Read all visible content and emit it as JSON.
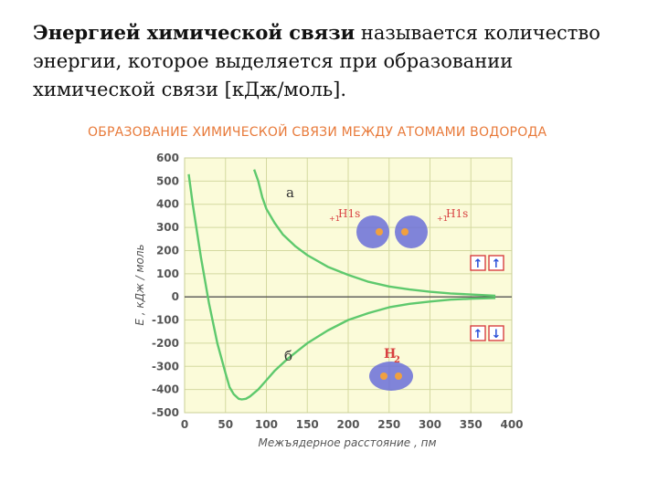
{
  "text": {
    "bold_term": "Энергией химической связи",
    "rest_line1": " называется количество",
    "line2": "энергии, которое выделяется при образовании",
    "line3": "химической связи [кДж/моль]."
  },
  "chart_data": {
    "type": "line",
    "title": "ОБРАЗОВАНИЕ ХИМИЧЕСКОЙ СВЯЗИ МЕЖДУ АТОМАМИ ВОДОРОДА",
    "xlabel": "Межъядерное расстояние ,  пм",
    "ylabel": "E , кДж / моль",
    "xlim": [
      0,
      400
    ],
    "ylim": [
      -500,
      600
    ],
    "x_ticks": [
      0,
      50,
      100,
      150,
      200,
      250,
      300,
      350,
      400
    ],
    "y_ticks": [
      600,
      500,
      400,
      300,
      200,
      100,
      0,
      -100,
      -200,
      -300,
      -400,
      -500
    ],
    "grid": true,
    "series": [
      {
        "name": "а",
        "x": [
          85,
          90,
          95,
          100,
          110,
          120,
          135,
          150,
          175,
          200,
          225,
          250,
          275,
          300,
          325,
          350,
          380
        ],
        "y": [
          550,
          500,
          430,
          380,
          320,
          270,
          220,
          180,
          130,
          95,
          65,
          45,
          32,
          22,
          15,
          10,
          5
        ]
      },
      {
        "name": "б",
        "x": [
          5,
          10,
          20,
          30,
          40,
          50,
          55,
          60,
          66,
          70,
          75,
          80,
          90,
          100,
          110,
          125,
          150,
          175,
          200,
          225,
          250,
          275,
          300,
          325,
          350,
          380
        ],
        "y": [
          530,
          400,
          170,
          -30,
          -200,
          -330,
          -390,
          -420,
          -440,
          -443,
          -440,
          -430,
          -400,
          -360,
          -320,
          -270,
          -200,
          -145,
          -100,
          -70,
          -45,
          -30,
          -20,
          -12,
          -8,
          -5
        ]
      }
    ],
    "annotations": {
      "label_a": "а",
      "label_b": "б",
      "atom1_label": "H1s",
      "atom2_label": "H1s",
      "atom_charge": "+1",
      "molecule_label": "H",
      "molecule_subscript": "2",
      "spins_parallel": "↑↑",
      "spins_antiparallel": "↑↓"
    },
    "colors": {
      "curve": "#5ec96d",
      "background": "#fbfbd9",
      "grid": "#d4d9a0",
      "axis_text": "#555555",
      "title": "#e87a3a",
      "atom": "#6a6ed8",
      "nucleus": "#f0a040",
      "spin_box": "#d84040",
      "spin_arrow": "#2a4fd8"
    }
  }
}
